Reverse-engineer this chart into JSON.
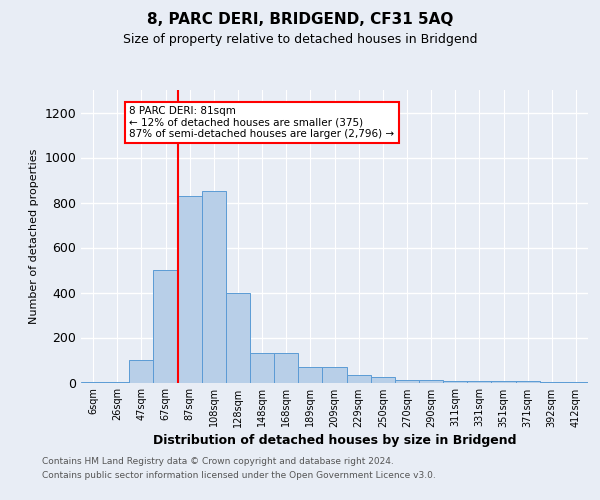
{
  "title": "8, PARC DERI, BRIDGEND, CF31 5AQ",
  "subtitle": "Size of property relative to detached houses in Bridgend",
  "xlabel": "Distribution of detached houses by size in Bridgend",
  "ylabel": "Number of detached properties",
  "categories": [
    "6sqm",
    "26sqm",
    "47sqm",
    "67sqm",
    "87sqm",
    "108sqm",
    "128sqm",
    "148sqm",
    "168sqm",
    "189sqm",
    "209sqm",
    "229sqm",
    "250sqm",
    "270sqm",
    "290sqm",
    "311sqm",
    "331sqm",
    "351sqm",
    "371sqm",
    "392sqm",
    "412sqm"
  ],
  "values": [
    4,
    4,
    100,
    500,
    830,
    850,
    400,
    130,
    130,
    70,
    70,
    35,
    25,
    12,
    12,
    6,
    5,
    5,
    5,
    4,
    2
  ],
  "bar_color": "#b8cfe8",
  "bar_edge_color": "#5b9bd5",
  "red_line_x": 3.5,
  "annotation_text": "8 PARC DERI: 81sqm\n← 12% of detached houses are smaller (375)\n87% of semi-detached houses are larger (2,796) →",
  "ylim": [
    0,
    1300
  ],
  "yticks": [
    0,
    200,
    400,
    600,
    800,
    1000,
    1200
  ],
  "footnote1": "Contains HM Land Registry data © Crown copyright and database right 2024.",
  "footnote2": "Contains public sector information licensed under the Open Government Licence v3.0.",
  "bg_color": "#e8edf5"
}
